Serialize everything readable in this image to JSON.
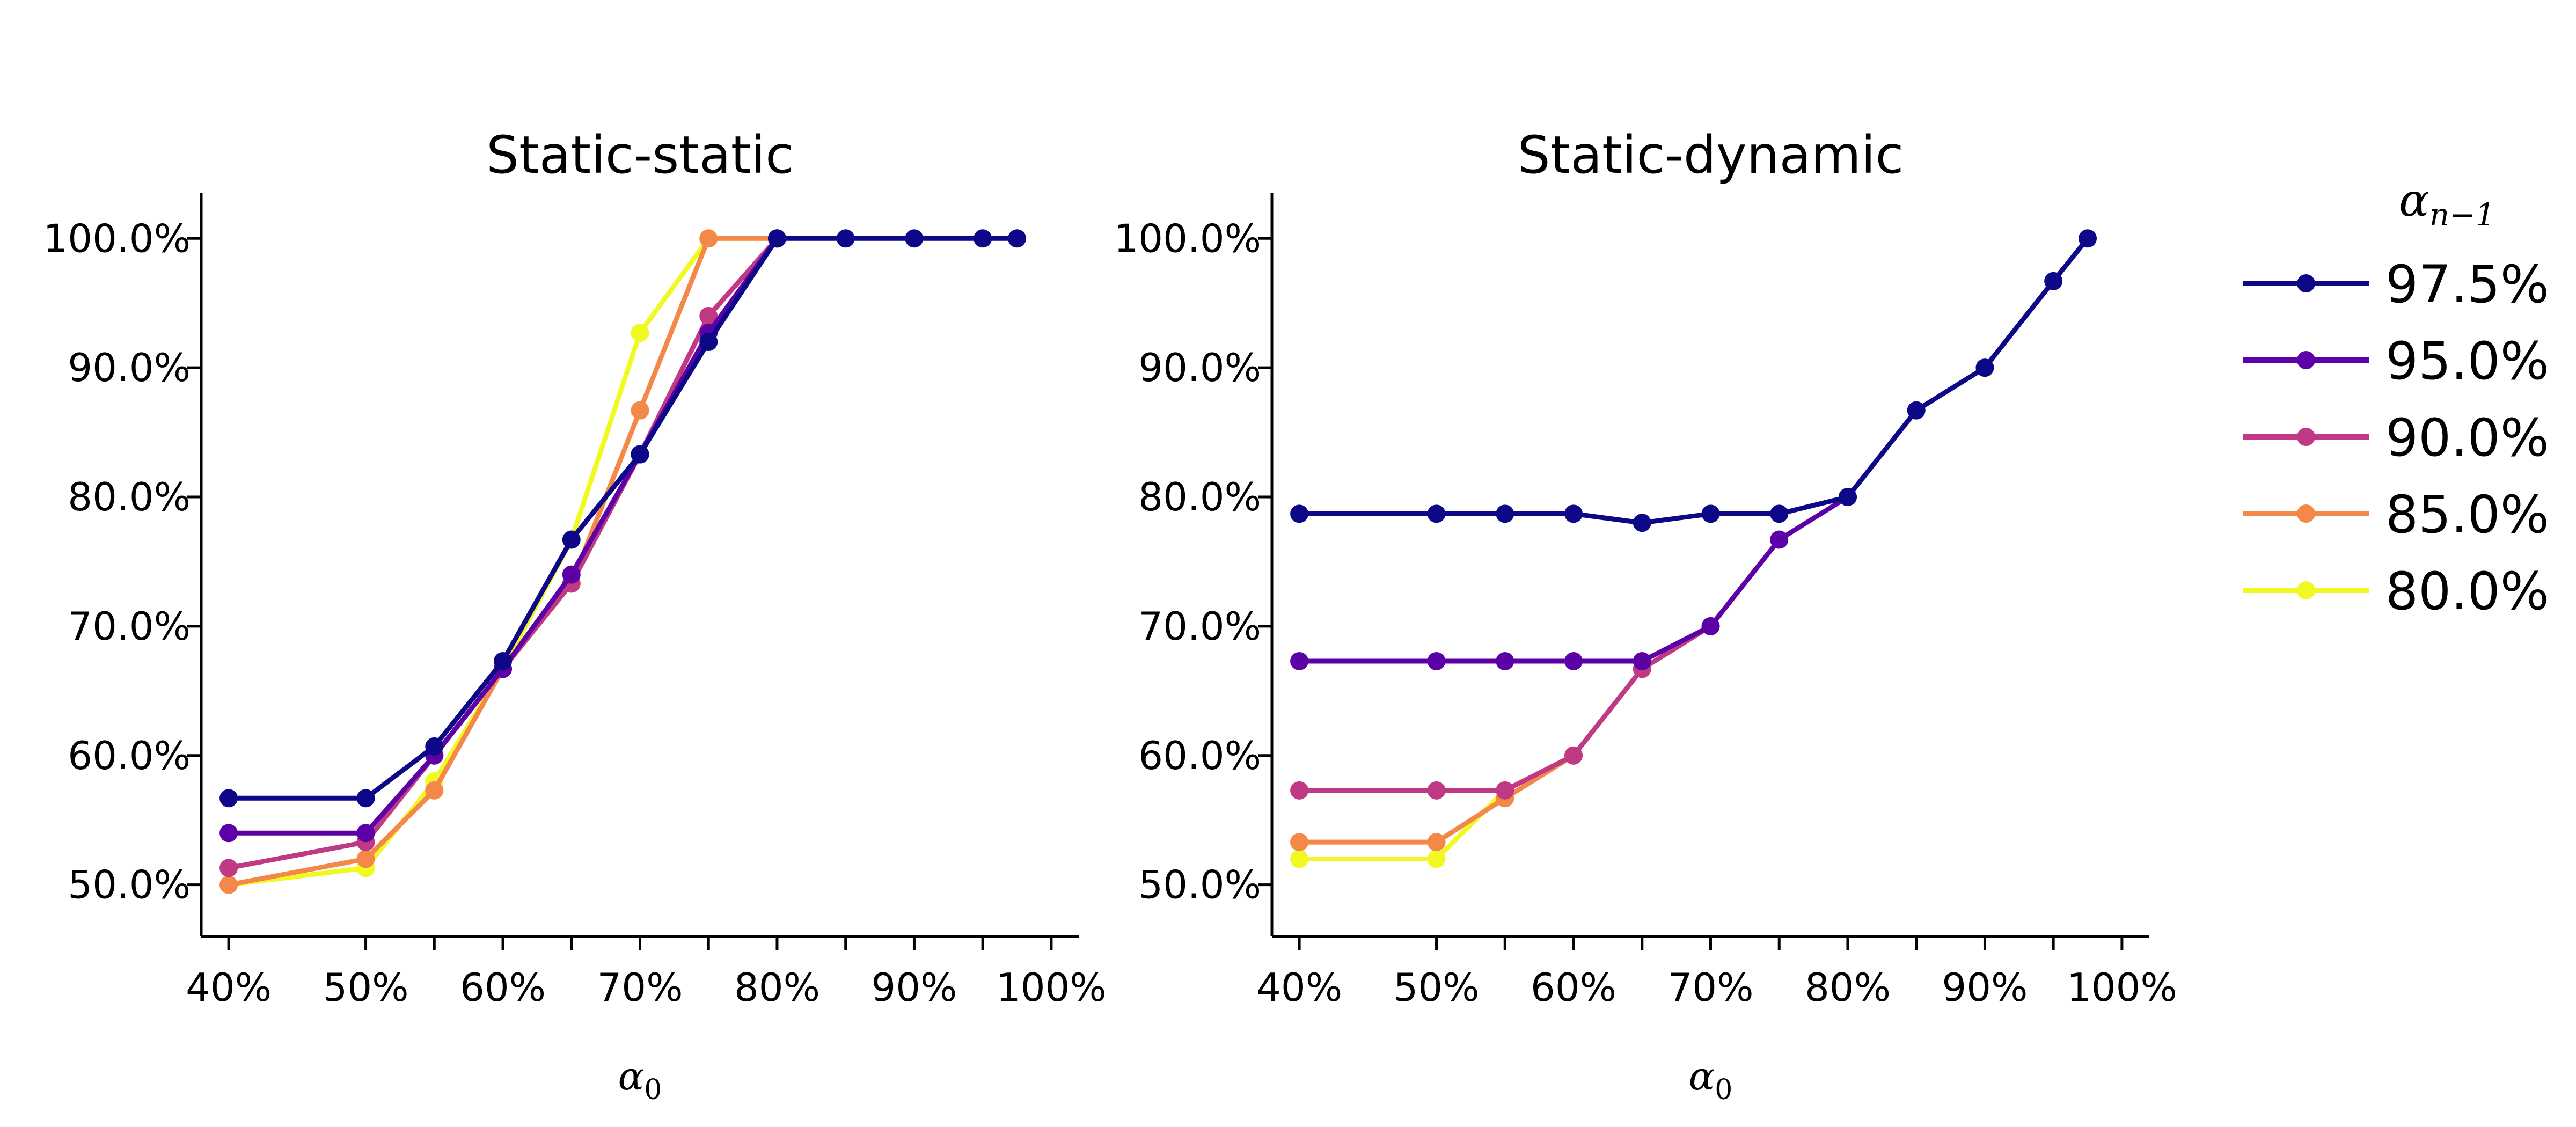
{
  "chart_data": [
    {
      "type": "line",
      "title": "Static-static",
      "xlabel": "α",
      "xlabel_sub": "0",
      "ylabel": "",
      "xlim": [
        38,
        102
      ],
      "ylim": [
        46,
        103.5
      ],
      "xticks": [
        40,
        50,
        60,
        70,
        80,
        90,
        100
      ],
      "xtick_labels": [
        "40%",
        "50%",
        "60%",
        "70%",
        "80%",
        "90%",
        "100%"
      ],
      "yticks": [
        50,
        60,
        70,
        80,
        90,
        100
      ],
      "ytick_labels": [
        "50.0%",
        "60.0%",
        "70.0%",
        "80.0%",
        "90.0%",
        "100.0%"
      ],
      "series": [
        {
          "name": "80.0%",
          "x": [
            40,
            50,
            55,
            60,
            65,
            70,
            75,
            80
          ],
          "values": [
            50.0,
            51.3,
            58.0,
            66.7,
            76.7,
            92.7,
            100.0,
            100.0
          ]
        },
        {
          "name": "85.0%",
          "x": [
            40,
            50,
            55,
            60,
            65,
            70,
            75,
            80
          ],
          "values": [
            50.0,
            52.0,
            57.3,
            66.7,
            73.3,
            86.7,
            100.0,
            100.0
          ]
        },
        {
          "name": "90.0%",
          "x": [
            40,
            50,
            55,
            60,
            65,
            70,
            75,
            80
          ],
          "values": [
            51.3,
            53.3,
            60.0,
            66.7,
            73.3,
            83.3,
            94.0,
            100.0
          ]
        },
        {
          "name": "95.0%",
          "x": [
            40,
            50,
            55,
            60,
            65,
            70,
            75,
            80
          ],
          "values": [
            54.0,
            54.0,
            60.0,
            66.7,
            74.0,
            83.3,
            92.7,
            100.0
          ]
        },
        {
          "name": "97.5%",
          "x": [
            40,
            50,
            55,
            60,
            65,
            70,
            75,
            80,
            85,
            90,
            95,
            97.5
          ],
          "values": [
            56.7,
            56.7,
            60.7,
            67.3,
            76.7,
            83.3,
            92.0,
            100.0,
            100.0,
            100.0,
            100.0,
            100.0
          ]
        }
      ]
    },
    {
      "type": "line",
      "title": "Static-dynamic",
      "xlabel": "α",
      "xlabel_sub": "0",
      "ylabel": "",
      "xlim": [
        38,
        102
      ],
      "ylim": [
        46,
        103.5
      ],
      "xticks": [
        40,
        50,
        60,
        70,
        80,
        90,
        100
      ],
      "xtick_labels": [
        "40%",
        "50%",
        "60%",
        "70%",
        "80%",
        "90%",
        "100%"
      ],
      "yticks": [
        50,
        60,
        70,
        80,
        90,
        100
      ],
      "ytick_labels": [
        "50.0%",
        "60.0%",
        "70.0%",
        "80.0%",
        "90.0%",
        "100.0%"
      ],
      "series": [
        {
          "name": "80.0%",
          "x": [
            40,
            50,
            55,
            60
          ],
          "values": [
            52.0,
            52.0,
            57.3,
            60.0
          ]
        },
        {
          "name": "85.0%",
          "x": [
            40,
            50,
            55,
            60
          ],
          "values": [
            53.3,
            53.3,
            56.7,
            60.0
          ]
        },
        {
          "name": "90.0%",
          "x": [
            40,
            50,
            55,
            60,
            65,
            70
          ],
          "values": [
            57.3,
            57.3,
            57.3,
            60.0,
            66.7,
            70.0
          ]
        },
        {
          "name": "95.0%",
          "x": [
            40,
            50,
            55,
            60,
            65,
            70,
            75,
            80
          ],
          "values": [
            67.3,
            67.3,
            67.3,
            67.3,
            67.3,
            70.0,
            76.7,
            80.0
          ]
        },
        {
          "name": "97.5%",
          "x": [
            40,
            50,
            55,
            60,
            65,
            70,
            75,
            80,
            85,
            90,
            95,
            97.5
          ],
          "values": [
            78.7,
            78.7,
            78.7,
            78.7,
            78.0,
            78.7,
            78.7,
            80.0,
            86.7,
            90.0,
            96.7,
            100.0
          ]
        }
      ]
    }
  ],
  "legend": {
    "title": "α",
    "title_sub": "n−1",
    "placement": "right",
    "entries": [
      {
        "label": "97.5%",
        "color": "#0d0887"
      },
      {
        "label": "95.0%",
        "color": "#5c01a6"
      },
      {
        "label": "90.0%",
        "color": "#bf3984"
      },
      {
        "label": "85.0%",
        "color": "#f48849"
      },
      {
        "label": "80.0%",
        "color": "#f0f921"
      }
    ]
  },
  "colors": {
    "97.5%": "#0d0887",
    "95.0%": "#5c01a6",
    "90.0%": "#bf3984",
    "85.0%": "#f48849",
    "80.0%": "#f0f921"
  }
}
